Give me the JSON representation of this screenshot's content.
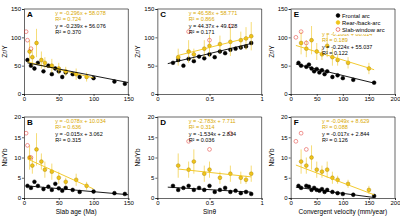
{
  "chart_data": [
    {
      "type": "scatter",
      "title": "A",
      "y_label": "Zr/Y",
      "xlim": [
        0,
        150
      ],
      "xticks": [
        0,
        50,
        100,
        150
      ],
      "ylim": [
        0,
        150
      ],
      "yticks": [
        0,
        50,
        100,
        150
      ],
      "series": [
        {
          "type": "line",
          "color": "#f0c419",
          "x": [
            5,
            100
          ],
          "values": [
            56.6,
            28.5
          ],
          "equation": "y = -0.296x + 58.078",
          "r2": "R² = 0.724"
        },
        {
          "type": "line",
          "color": "#000000",
          "x": [
            5,
            150
          ],
          "values": [
            54.9,
            20.2
          ],
          "equation": "y = -0.239x + 56.076",
          "r2": "R² = 0.370"
        },
        {
          "type": "scatter",
          "color": "#000000",
          "marker": "circle",
          "x": [
            5,
            10,
            15,
            20,
            28,
            35,
            40,
            45,
            50,
            55,
            60,
            70,
            80,
            100,
            130,
            145
          ],
          "values": [
            60,
            50,
            45,
            55,
            40,
            50,
            35,
            45,
            40,
            30,
            38,
            35,
            30,
            28,
            22,
            18
          ]
        },
        {
          "type": "scatter",
          "color": "#f0c419",
          "marker": "circle",
          "x": [
            8,
            12,
            18,
            25,
            30,
            40,
            50,
            60,
            75,
            90
          ],
          "values": [
            75,
            65,
            90,
            60,
            55,
            50,
            45,
            40,
            35,
            30
          ],
          "errors": [
            20,
            15,
            25,
            15,
            10,
            12,
            10,
            8,
            10,
            8
          ]
        },
        {
          "type": "scatter",
          "color": "#e0302a",
          "marker": "open-circle",
          "x": [
            3,
            5,
            10
          ],
          "values": [
            110,
            95,
            80
          ]
        }
      ]
    },
    {
      "type": "scatter",
      "title": "B",
      "x_label": "Slab age (Ma)",
      "y_label": "Nb/Yb",
      "xlim": [
        0,
        150
      ],
      "xticks": [
        0,
        50,
        100,
        150
      ],
      "ylim": [
        0,
        20
      ],
      "yticks": [
        0,
        5,
        10,
        15,
        20
      ],
      "series": [
        {
          "type": "line",
          "color": "#f0c419",
          "x": [
            5,
            100
          ],
          "values": [
            9.64,
            2.23
          ],
          "equation": "y = -0.078x + 10.034",
          "r2": "R² = 0.636"
        },
        {
          "type": "line",
          "color": "#000000",
          "x": [
            5,
            150
          ],
          "values": [
            2.99,
            0.81
          ],
          "equation": "y = -0.015x + 3.062",
          "r2": "R² = 0.315"
        },
        {
          "type": "scatter",
          "color": "#000000",
          "marker": "circle",
          "x": [
            5,
            10,
            15,
            20,
            28,
            35,
            40,
            45,
            50,
            55,
            60,
            70,
            80,
            100,
            130,
            145
          ],
          "values": [
            3,
            2.5,
            4,
            3,
            2.2,
            2.8,
            2,
            3.5,
            2.4,
            1.8,
            2.5,
            2,
            1.5,
            1.6,
            1.2,
            1.0
          ]
        },
        {
          "type": "scatter",
          "color": "#f0c419",
          "marker": "circle",
          "x": [
            8,
            12,
            18,
            25,
            30,
            40,
            50,
            60,
            75,
            90
          ],
          "values": [
            10,
            8,
            12,
            9,
            7,
            6.5,
            5,
            4,
            4.5,
            3
          ],
          "errors": [
            3,
            2,
            4,
            2,
            2,
            2,
            1.5,
            1,
            1.5,
            1
          ]
        },
        {
          "type": "scatter",
          "color": "#e0302a",
          "marker": "open-circle",
          "x": [
            3,
            5,
            10
          ],
          "values": [
            16,
            13,
            10
          ]
        }
      ]
    },
    {
      "type": "scatter",
      "title": "C",
      "y_label": "Zr/Y",
      "xlim": [
        0,
        1
      ],
      "xticks": [
        0,
        0.5,
        1
      ],
      "ylim": [
        0,
        150
      ],
      "yticks": [
        0,
        50,
        100,
        150
      ],
      "series": [
        {
          "type": "line",
          "color": "#f0c419",
          "x": [
            0.2,
            0.9
          ],
          "values": [
            68.1,
            100.7
          ],
          "equation": "y = 46.58x + 58.771",
          "r2": "R² = 0.866"
        },
        {
          "type": "line",
          "color": "#000000",
          "x": [
            0.1,
            0.9
          ],
          "values": [
            53.6,
            89.1
          ],
          "equation": "y = 44.37x + 49.128",
          "r2": "R² = 0.171"
        },
        {
          "type": "scatter",
          "color": "#000000",
          "marker": "circle",
          "x": [
            0.15,
            0.2,
            0.25,
            0.3,
            0.35,
            0.4,
            0.45,
            0.5,
            0.55,
            0.6,
            0.65,
            0.7,
            0.75,
            0.8,
            0.85,
            0.9
          ],
          "values": [
            55,
            60,
            50,
            62,
            58,
            66,
            63,
            70,
            65,
            75,
            72,
            78,
            80,
            82,
            84,
            90
          ]
        },
        {
          "type": "scatter",
          "color": "#f0c419",
          "marker": "circle",
          "x": [
            0.2,
            0.3,
            0.35,
            0.45,
            0.5,
            0.6,
            0.7,
            0.8,
            0.85,
            0.9
          ],
          "values": [
            65,
            75,
            70,
            80,
            85,
            88,
            92,
            95,
            98,
            102
          ],
          "errors": [
            15,
            20,
            10,
            15,
            20,
            15,
            25,
            15,
            20,
            25
          ]
        },
        {
          "type": "scatter",
          "color": "#e0302a",
          "marker": "open-circle",
          "x": [
            0.3,
            0.5,
            0.7
          ],
          "values": [
            110,
            95,
            120
          ]
        }
      ]
    },
    {
      "type": "scatter",
      "title": "D",
      "x_label": "Sinθ",
      "y_label": "Nb/Yb",
      "xlim": [
        0,
        1
      ],
      "xticks": [
        0,
        0.5,
        1
      ],
      "ylim": [
        0,
        20
      ],
      "yticks": [
        0,
        5,
        10,
        15,
        20
      ],
      "series": [
        {
          "type": "line",
          "color": "#f0c419",
          "x": [
            0.2,
            0.9
          ],
          "values": [
            7.15,
            5.21
          ],
          "equation": "y = -2.783x + 7.711",
          "r2": "R² = 0.314"
        },
        {
          "type": "line",
          "color": "#000000",
          "x": [
            0.1,
            0.9
          ],
          "values": [
            2.68,
            1.45
          ],
          "equation": "y = -1.534x + 2.834",
          "r2": "R² = 0.036"
        },
        {
          "type": "scatter",
          "color": "#000000",
          "marker": "circle",
          "x": [
            0.15,
            0.2,
            0.25,
            0.3,
            0.35,
            0.4,
            0.45,
            0.5,
            0.55,
            0.6,
            0.65,
            0.7,
            0.75,
            0.8,
            0.85,
            0.9
          ],
          "values": [
            3,
            2,
            2.5,
            3,
            2,
            2.5,
            2,
            3,
            1.5,
            2,
            2.5,
            1.5,
            1.8,
            1.2,
            1.5,
            1
          ]
        },
        {
          "type": "scatter",
          "color": "#f0c419",
          "marker": "circle",
          "x": [
            0.2,
            0.3,
            0.35,
            0.45,
            0.5,
            0.6,
            0.7,
            0.8,
            0.85,
            0.9
          ],
          "values": [
            8,
            7,
            9,
            6,
            7,
            5,
            6,
            5,
            4.5,
            6
          ],
          "errors": [
            3,
            2,
            3,
            2,
            2,
            1.5,
            2,
            1.5,
            1,
            2
          ]
        },
        {
          "type": "scatter",
          "color": "#e0302a",
          "marker": "open-circle",
          "x": [
            0.3,
            0.5,
            0.7
          ],
          "values": [
            14,
            12,
            16
          ]
        }
      ]
    },
    {
      "type": "scatter",
      "title": "E",
      "y_label": "Zr/Y",
      "legend": "upper right",
      "xlim": [
        0,
        200
      ],
      "xticks": [
        0,
        50,
        100,
        150,
        200
      ],
      "ylim": [
        0,
        150
      ],
      "yticks": [
        0,
        50,
        100,
        150
      ],
      "series": [
        {
          "type": "line",
          "color": "#f0c419",
          "x": [
            10,
            160
          ],
          "values": [
            85.7,
            42.9
          ],
          "equation": "y = -0.286x + 88.614",
          "r2": "R² = 0.189"
        },
        {
          "type": "line",
          "color": "#000000",
          "x": [
            10,
            160
          ],
          "values": [
            52.8,
            19.2
          ],
          "equation": "y = -0.224x + 55.037",
          "r2": "R² = 0.122"
        },
        {
          "type": "scatter",
          "name": "Frontal arc",
          "color": "#000000",
          "marker": "circle",
          "x": [
            15,
            20,
            30,
            35,
            40,
            45,
            50,
            55,
            60,
            65,
            70,
            80,
            90,
            100,
            120,
            160
          ],
          "values": [
            55,
            50,
            48,
            52,
            45,
            40,
            44,
            38,
            42,
            35,
            40,
            30,
            33,
            28,
            25,
            20
          ]
        },
        {
          "type": "scatter",
          "name": "Rear-/back-arc",
          "color": "#f0c419",
          "marker": "circle",
          "x": [
            20,
            30,
            40,
            50,
            60,
            70,
            80,
            90,
            110,
            150
          ],
          "values": [
            90,
            80,
            95,
            75,
            70,
            85,
            65,
            60,
            55,
            45
          ],
          "errors": [
            20,
            15,
            25,
            15,
            10,
            20,
            15,
            10,
            10,
            10
          ]
        },
        {
          "type": "scatter",
          "name": "Slab-window arc",
          "color": "#e0302a",
          "marker": "open-circle",
          "x": [
            10,
            20,
            30
          ],
          "values": [
            100,
            110,
            90
          ]
        }
      ]
    },
    {
      "type": "scatter",
      "title": "F",
      "x_label": "Convergent velocity (mm/year)",
      "y_label": "Nb/Yb",
      "xlim": [
        0,
        200
      ],
      "xticks": [
        0,
        50,
        100,
        150,
        200
      ],
      "ylim": [
        0,
        20
      ],
      "yticks": [
        0,
        5,
        10,
        15,
        20
      ],
      "series": [
        {
          "type": "line",
          "color": "#f0c419",
          "x": [
            10,
            160
          ],
          "values": [
            8.14,
            0.79
          ],
          "equation": "y = -0.049x + 8.629",
          "r2": "R² = 0.088"
        },
        {
          "type": "line",
          "color": "#000000",
          "x": [
            10,
            160
          ],
          "values": [
            2.67,
            0.12
          ],
          "equation": "y = -0.017x + 2.844",
          "r2": "R² = 0.126"
        },
        {
          "type": "scatter",
          "color": "#000000",
          "marker": "circle",
          "x": [
            15,
            20,
            30,
            35,
            40,
            45,
            50,
            55,
            60,
            65,
            70,
            80,
            90,
            100,
            120,
            160
          ],
          "values": [
            3,
            2.5,
            3,
            2.8,
            2,
            2.5,
            2,
            1.8,
            2.2,
            1.5,
            2,
            1.5,
            1.2,
            1.0,
            0.8,
            0.5
          ]
        },
        {
          "type": "scatter",
          "color": "#f0c419",
          "marker": "circle",
          "x": [
            20,
            30,
            40,
            50,
            60,
            70,
            80,
            90,
            110,
            150
          ],
          "values": [
            9,
            8,
            10,
            7,
            6.5,
            7,
            5,
            4.5,
            3.5,
            2
          ],
          "errors": [
            3,
            2,
            3,
            2,
            1.5,
            2,
            1.5,
            1,
            1,
            1
          ]
        },
        {
          "type": "scatter",
          "color": "#e0302a",
          "marker": "open-circle",
          "x": [
            10,
            20,
            30
          ],
          "values": [
            14,
            16,
            12
          ]
        }
      ]
    }
  ]
}
